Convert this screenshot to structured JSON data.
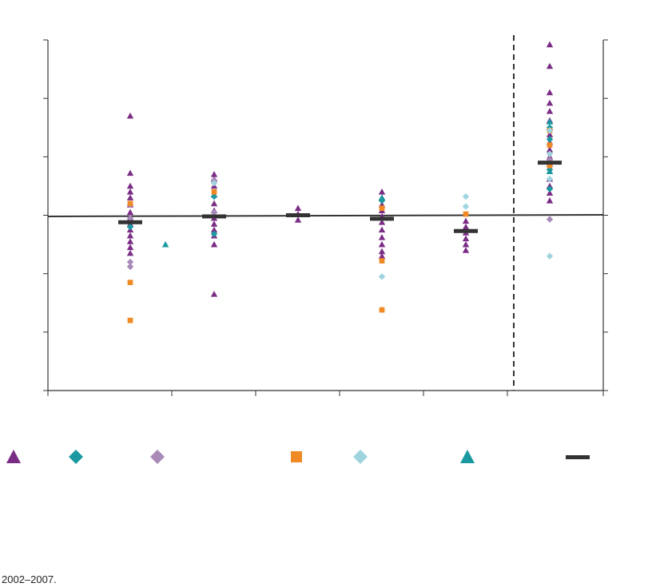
{
  "figure": {
    "footnote_visible": "2002–2007."
  },
  "colors": {
    "purple": "#7b2d86",
    "teal": "#1a9aa0",
    "lavender": "#a889b8",
    "orange": "#ef8a25",
    "light_blue": "#9fd4df",
    "median": "#333333",
    "axis": "#333333"
  },
  "legend": [
    {
      "symbol": "triangle",
      "color": "#7b2d86",
      "label": ""
    },
    {
      "symbol": "diamond",
      "color": "#1a9aa0",
      "label": ""
    },
    {
      "symbol": "diamond",
      "color": "#a889b8",
      "label": ""
    },
    {
      "symbol": "square",
      "color": "#ef8a25",
      "label": ""
    },
    {
      "symbol": "diamond",
      "color": "#9fd4df",
      "label": ""
    },
    {
      "symbol": "triangle",
      "color": "#1a9aa0",
      "label": ""
    },
    {
      "symbol": "line",
      "color": "#333333",
      "label": ""
    }
  ],
  "chart_data": {
    "type": "scatter",
    "title": "",
    "xlabel": "",
    "ylabel": "",
    "ylim": [
      -3,
      3
    ],
    "yticks": [
      -3,
      -2,
      -1,
      0,
      1,
      2,
      3
    ],
    "grid": false,
    "legend_position": "bottom",
    "categories": [
      "",
      "",
      "",
      "",
      "",
      ""
    ],
    "divider_after_category_index": 4,
    "medians": [
      -0.12,
      -0.02,
      0.0,
      -0.06,
      -0.27,
      0.9
    ],
    "series": [
      {
        "color": "#7b2d86",
        "symbol": "triangle",
        "points": [
          [
            0,
            1.7
          ],
          [
            0,
            0.72
          ],
          [
            0,
            0.5
          ],
          [
            0,
            0.4
          ],
          [
            0,
            0.3
          ],
          [
            0,
            0.18
          ],
          [
            0,
            0.05
          ],
          [
            0,
            -0.05
          ],
          [
            0,
            -0.15
          ],
          [
            0,
            -0.25
          ],
          [
            0,
            -0.35
          ],
          [
            0,
            -0.45
          ],
          [
            0,
            -0.55
          ],
          [
            0,
            -0.65
          ],
          [
            1,
            0.7
          ],
          [
            1,
            0.62
          ],
          [
            1,
            0.5
          ],
          [
            1,
            0.35
          ],
          [
            1,
            0.2
          ],
          [
            1,
            0.08
          ],
          [
            1,
            -0.05
          ],
          [
            1,
            -0.15
          ],
          [
            1,
            -0.25
          ],
          [
            1,
            -0.35
          ],
          [
            1,
            -0.5
          ],
          [
            1,
            -1.35
          ],
          [
            2,
            0.12
          ],
          [
            2,
            0.02
          ],
          [
            2,
            -0.08
          ],
          [
            3,
            0.4
          ],
          [
            3,
            0.3
          ],
          [
            3,
            0.18
          ],
          [
            3,
            0.08
          ],
          [
            3,
            -0.02
          ],
          [
            3,
            -0.12
          ],
          [
            3,
            -0.25
          ],
          [
            3,
            -0.38
          ],
          [
            3,
            -0.5
          ],
          [
            3,
            -0.62
          ],
          [
            3,
            -0.7
          ],
          [
            4,
            -0.1
          ],
          [
            4,
            -0.2
          ],
          [
            4,
            -0.3
          ],
          [
            4,
            -0.4
          ],
          [
            4,
            -0.5
          ],
          [
            4,
            -0.6
          ],
          [
            5,
            2.92
          ],
          [
            5,
            2.55
          ],
          [
            5,
            2.1
          ],
          [
            5,
            1.92
          ],
          [
            5,
            1.78
          ],
          [
            5,
            1.62
          ],
          [
            5,
            1.5
          ],
          [
            5,
            1.38
          ],
          [
            5,
            1.25
          ],
          [
            5,
            1.12
          ],
          [
            5,
            1.0
          ],
          [
            5,
            0.88
          ],
          [
            5,
            0.75
          ],
          [
            5,
            0.62
          ],
          [
            5,
            0.5
          ],
          [
            5,
            0.38
          ],
          [
            5,
            0.25
          ]
        ]
      },
      {
        "color": "#1a9aa0",
        "symbol": "diamond",
        "points": [
          [
            0,
            -0.2
          ],
          [
            1,
            0.32
          ],
          [
            1,
            -0.32
          ],
          [
            3,
            0.25
          ],
          [
            5,
            1.5
          ],
          [
            5,
            1.3
          ],
          [
            5,
            0.78
          ],
          [
            5,
            0.45
          ]
        ]
      },
      {
        "color": "#a889b8",
        "symbol": "diamond",
        "points": [
          [
            0,
            -0.05
          ],
          [
            0,
            0.18
          ],
          [
            0,
            -0.8
          ],
          [
            0,
            -0.88
          ],
          [
            1,
            0.6
          ],
          [
            1,
            0.05
          ],
          [
            5,
            0.95
          ],
          [
            5,
            -0.07
          ]
        ]
      },
      {
        "color": "#ef8a25",
        "symbol": "square",
        "points": [
          [
            0,
            0.2
          ],
          [
            0,
            -1.15
          ],
          [
            0,
            -1.8
          ],
          [
            1,
            0.4
          ],
          [
            3,
            0.12
          ],
          [
            3,
            -0.78
          ],
          [
            3,
            -1.62
          ],
          [
            4,
            0.02
          ],
          [
            5,
            1.45
          ],
          [
            5,
            1.2
          ],
          [
            5,
            0.85
          ]
        ]
      },
      {
        "color": "#9fd4df",
        "symbol": "diamond",
        "points": [
          [
            1,
            0.55
          ],
          [
            3,
            -1.05
          ],
          [
            4,
            0.32
          ],
          [
            4,
            0.15
          ],
          [
            5,
            1.45
          ],
          [
            5,
            1.05
          ],
          [
            5,
            0.62
          ],
          [
            5,
            -0.7
          ]
        ]
      },
      {
        "color": "#1a9aa0",
        "symbol": "triangle",
        "points": [
          [
            0.42,
            -0.5
          ],
          [
            3,
            0.3
          ],
          [
            5,
            1.6
          ],
          [
            5,
            0.75
          ]
        ]
      }
    ]
  }
}
